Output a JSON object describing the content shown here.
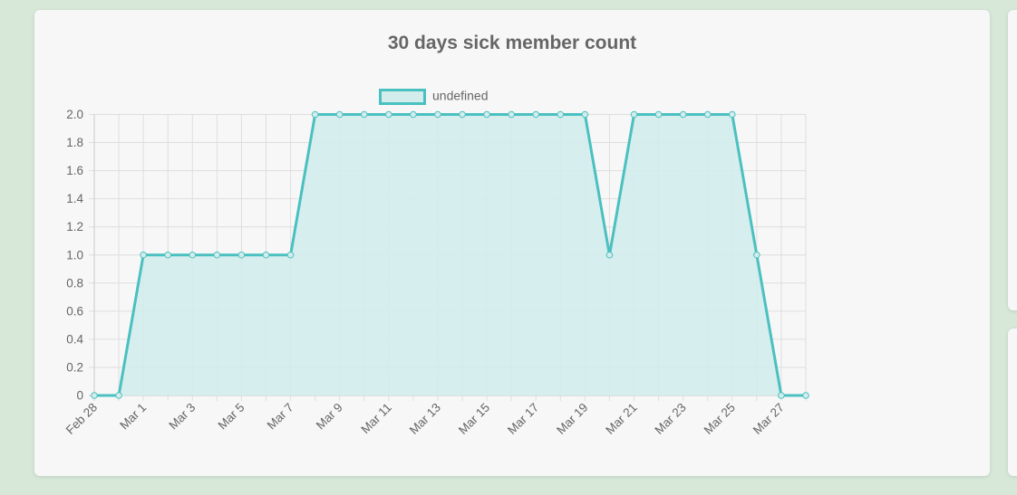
{
  "chart_data": {
    "type": "area",
    "title": "30 days sick member count",
    "legend": {
      "position": "top",
      "entries": [
        "undefined"
      ]
    },
    "x_labels": [
      "Feb 28",
      "Mar 1",
      "Mar 3",
      "Mar 5",
      "Mar 7",
      "Mar 9",
      "Mar 11",
      "Mar 13",
      "Mar 15",
      "Mar 17",
      "Mar 19",
      "Mar 21",
      "Mar 23",
      "Mar 25",
      "Mar 27"
    ],
    "x": [
      "Feb 28",
      "Feb 29",
      "Mar 1",
      "Mar 2",
      "Mar 3",
      "Mar 4",
      "Mar 5",
      "Mar 6",
      "Mar 7",
      "Mar 8",
      "Mar 9",
      "Mar 10",
      "Mar 11",
      "Mar 12",
      "Mar 13",
      "Mar 14",
      "Mar 15",
      "Mar 16",
      "Mar 17",
      "Mar 18",
      "Mar 19",
      "Mar 20",
      "Mar 21",
      "Mar 22",
      "Mar 23",
      "Mar 24",
      "Mar 25",
      "Mar 26",
      "Mar 27",
      "Mar 28"
    ],
    "y_ticks": [
      "2.0",
      "1.8",
      "1.6",
      "1.4",
      "1.2",
      "1.0",
      "0.8",
      "0.6",
      "0.4",
      "0.2",
      "0"
    ],
    "series": [
      {
        "name": "undefined",
        "values": [
          0,
          0,
          1,
          1,
          1,
          1,
          1,
          1,
          1,
          2,
          2,
          2,
          2,
          2,
          2,
          2,
          2,
          2,
          2,
          2,
          2,
          1,
          2,
          2,
          2,
          2,
          2,
          1,
          0,
          0
        ],
        "border_color": "#4bc0c0",
        "fill_color": "#d3ecec"
      }
    ],
    "ylim": [
      0,
      2
    ],
    "grid": true
  }
}
